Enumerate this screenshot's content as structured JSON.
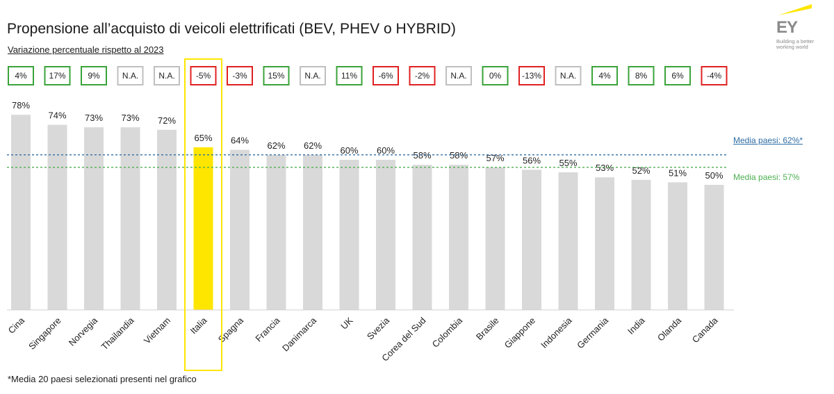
{
  "title": "Propensione all’acquisto di veicoli elettrificati (BEV, PHEV o HYBRID)",
  "subtitle": "Variazione percentuale rispetto al 2023",
  "footnote": "*Media 20 paesi selezionati presenti nel grafico",
  "logo": {
    "mark": "EY",
    "tagline": "Building a better working world"
  },
  "colors": {
    "bar": "#d9d9d9",
    "highlight": "#ffe600",
    "positive": "#3aa33a",
    "negative": "#e02020",
    "neutral": "#bfbfbf",
    "avg1": "#2e6da4",
    "avg2": "#4caf50"
  },
  "chart_data": {
    "type": "bar",
    "categories": [
      "Cina",
      "Singapore",
      "Norvegia",
      "Thailandia",
      "Vietnam",
      "Italia",
      "Spagna",
      "Francia",
      "Danimarca",
      "UK",
      "Svezia",
      "Corea del Sud",
      "Colombia",
      "Brasile",
      "Giappone",
      "Indonesia",
      "Germania",
      "India",
      "Olanda",
      "Canada"
    ],
    "values": [
      78,
      74,
      73,
      73,
      72,
      65,
      64,
      62,
      62,
      60,
      60,
      58,
      58,
      57,
      56,
      55,
      53,
      52,
      51,
      50
    ],
    "value_labels": [
      "78%",
      "74%",
      "73%",
      "73%",
      "72%",
      "65%",
      "64%",
      "62%",
      "62%",
      "60%",
      "60%",
      "58%",
      "58%",
      "57%",
      "56%",
      "55%",
      "53%",
      "52%",
      "51%",
      "50%"
    ],
    "changes": [
      "4%",
      "17%",
      "9%",
      "N.A.",
      "N.A.",
      "-5%",
      "-3%",
      "15%",
      "N.A.",
      "11%",
      "-6%",
      "-2%",
      "N.A.",
      "0%",
      "-13%",
      "N.A.",
      "4%",
      "8%",
      "6%",
      "-4%"
    ],
    "change_status": [
      "pos",
      "pos",
      "pos",
      "na",
      "na",
      "neg",
      "neg",
      "pos",
      "na",
      "pos",
      "neg",
      "neg",
      "na",
      "pos",
      "neg",
      "na",
      "pos",
      "pos",
      "pos",
      "neg"
    ],
    "highlight": "Italia",
    "reference_lines": [
      {
        "label": "Media paesi: 62%*",
        "value": 62,
        "style": "dashed"
      },
      {
        "label": "Media paesi: 57%",
        "value": 57,
        "style": "dashed"
      }
    ],
    "ylim": [
      0,
      100
    ],
    "grid": false
  }
}
